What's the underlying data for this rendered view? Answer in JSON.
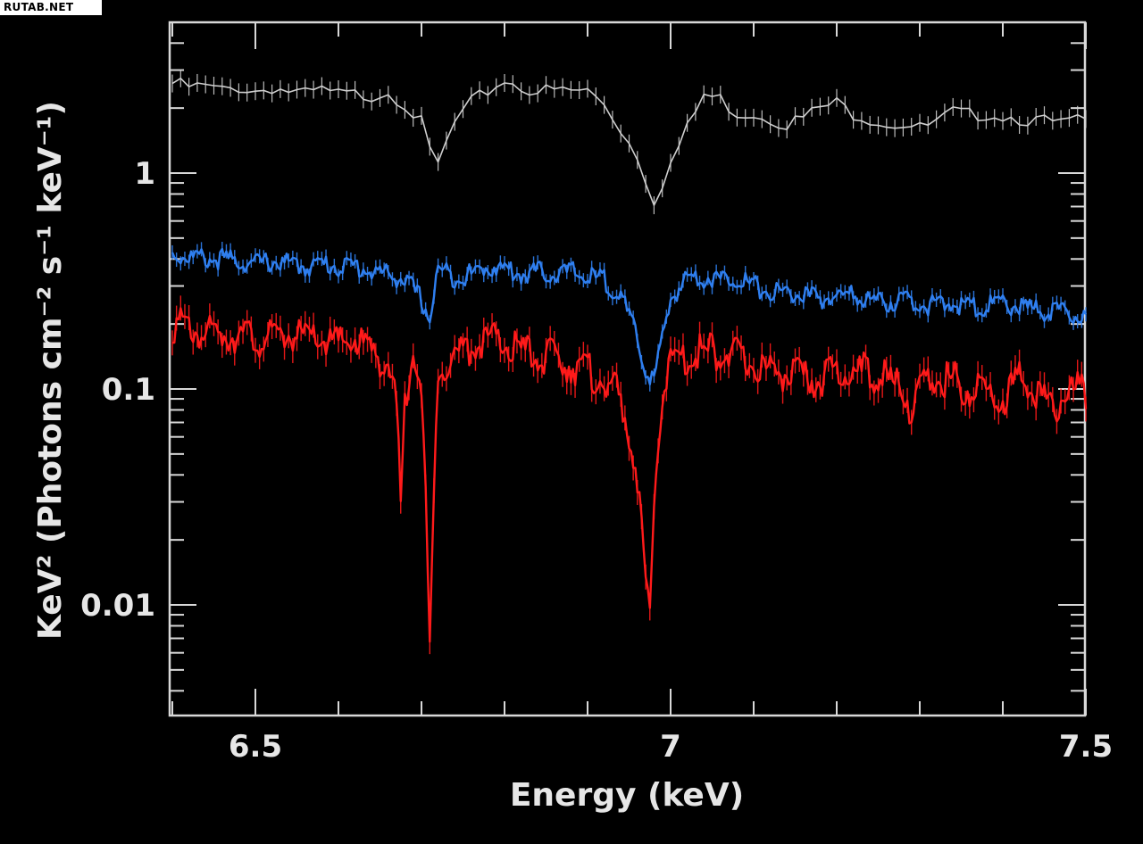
{
  "watermark": "RUTAB.NET",
  "chart_data": {
    "type": "line",
    "xlabel": "Energy (keV)",
    "ylabel": "KeV² (Photons cm⁻² s⁻¹ keV⁻¹)",
    "xlim": [
      6.4,
      7.5
    ],
    "ylim": [
      0.003,
      4.5
    ],
    "y_scale": "log",
    "grid": false,
    "x_ticks": [
      {
        "value": 6.5,
        "label": "6.5"
      },
      {
        "value": 7,
        "label": "7"
      },
      {
        "value": 7.5,
        "label": "7.5"
      }
    ],
    "y_ticks": [
      {
        "value": 1,
        "label": "1"
      },
      {
        "value": 0.1,
        "label": "0.1"
      },
      {
        "value": 0.01,
        "label": "0.01"
      }
    ],
    "series": [
      {
        "color": "#cfcfcf",
        "x": [
          6.4,
          6.42,
          6.44,
          6.46,
          6.48,
          6.5,
          6.52,
          6.54,
          6.56,
          6.58,
          6.6,
          6.62,
          6.64,
          6.66,
          6.68,
          6.7,
          6.71,
          6.72,
          6.74,
          6.76,
          6.78,
          6.8,
          6.82,
          6.84,
          6.86,
          6.88,
          6.9,
          6.92,
          6.94,
          6.96,
          6.98,
          7.0,
          7.02,
          7.04,
          7.06,
          7.08,
          7.1,
          7.12,
          7.14,
          7.16,
          7.18,
          7.2,
          7.22,
          7.24,
          7.26,
          7.28,
          7.3,
          7.32,
          7.34,
          7.36,
          7.38,
          7.4,
          7.42,
          7.44,
          7.46,
          7.48,
          7.5
        ],
        "y": [
          2.6,
          2.5,
          2.5,
          2.4,
          2.5,
          2.4,
          2.5,
          2.4,
          2.3,
          2.4,
          2.3,
          2.3,
          2.3,
          2.4,
          2.1,
          1.7,
          1.25,
          1.1,
          1.7,
          2.1,
          2.4,
          2.7,
          2.5,
          2.4,
          2.4,
          2.4,
          2.4,
          2.1,
          1.6,
          1.2,
          0.75,
          1.1,
          1.6,
          2.3,
          2.2,
          1.9,
          1.9,
          1.8,
          1.7,
          1.8,
          2.0,
          2.1,
          1.9,
          1.8,
          1.7,
          1.7,
          1.6,
          1.7,
          1.9,
          1.85,
          1.9,
          1.85,
          1.8,
          1.75,
          1.7,
          1.7,
          1.75
        ]
      },
      {
        "color": "#2f7ff0",
        "x": [
          6.4,
          6.42,
          6.44,
          6.46,
          6.48,
          6.5,
          6.52,
          6.54,
          6.56,
          6.58,
          6.6,
          6.62,
          6.64,
          6.66,
          6.68,
          6.7,
          6.71,
          6.72,
          6.74,
          6.76,
          6.78,
          6.8,
          6.82,
          6.84,
          6.86,
          6.88,
          6.9,
          6.92,
          6.94,
          6.96,
          6.97,
          6.98,
          7.0,
          7.02,
          7.04,
          7.06,
          7.08,
          7.1,
          7.12,
          7.14,
          7.16,
          7.18,
          7.2,
          7.22,
          7.24,
          7.26,
          7.28,
          7.3,
          7.32,
          7.34,
          7.36,
          7.38,
          7.4,
          7.42,
          7.44,
          7.46,
          7.48,
          7.5
        ],
        "y": [
          0.42,
          0.41,
          0.4,
          0.4,
          0.39,
          0.38,
          0.39,
          0.38,
          0.37,
          0.38,
          0.37,
          0.37,
          0.35,
          0.34,
          0.32,
          0.26,
          0.21,
          0.36,
          0.33,
          0.34,
          0.37,
          0.36,
          0.34,
          0.35,
          0.34,
          0.35,
          0.33,
          0.32,
          0.27,
          0.17,
          0.12,
          0.11,
          0.26,
          0.33,
          0.33,
          0.32,
          0.33,
          0.3,
          0.28,
          0.28,
          0.27,
          0.26,
          0.27,
          0.27,
          0.26,
          0.25,
          0.26,
          0.25,
          0.24,
          0.25,
          0.24,
          0.24,
          0.25,
          0.24,
          0.23,
          0.23,
          0.22,
          0.21
        ]
      },
      {
        "color": "#ff1a1a",
        "x": [
          6.4,
          6.42,
          6.44,
          6.46,
          6.48,
          6.5,
          6.52,
          6.54,
          6.56,
          6.58,
          6.6,
          6.62,
          6.64,
          6.66,
          6.67,
          6.675,
          6.68,
          6.69,
          6.7,
          6.705,
          6.71,
          6.715,
          6.72,
          6.74,
          6.76,
          6.78,
          6.8,
          6.82,
          6.84,
          6.86,
          6.88,
          6.9,
          6.92,
          6.94,
          6.95,
          6.96,
          6.97,
          6.975,
          6.98,
          6.99,
          7.0,
          7.02,
          7.04,
          7.06,
          7.08,
          7.1,
          7.12,
          7.14,
          7.16,
          7.18,
          7.2,
          7.22,
          7.24,
          7.26,
          7.28,
          7.29,
          7.3,
          7.32,
          7.34,
          7.36,
          7.38,
          7.4,
          7.42,
          7.44,
          7.46,
          7.48,
          7.5
        ],
        "y": [
          0.2,
          0.19,
          0.18,
          0.18,
          0.18,
          0.17,
          0.17,
          0.18,
          0.17,
          0.17,
          0.16,
          0.17,
          0.15,
          0.13,
          0.08,
          0.03,
          0.08,
          0.17,
          0.1,
          0.03,
          0.006,
          0.03,
          0.13,
          0.14,
          0.16,
          0.17,
          0.16,
          0.15,
          0.14,
          0.14,
          0.13,
          0.12,
          0.11,
          0.09,
          0.06,
          0.04,
          0.012,
          0.008,
          0.03,
          0.1,
          0.13,
          0.14,
          0.15,
          0.15,
          0.14,
          0.13,
          0.12,
          0.12,
          0.11,
          0.11,
          0.12,
          0.12,
          0.12,
          0.11,
          0.1,
          0.08,
          0.1,
          0.11,
          0.11,
          0.1,
          0.1,
          0.09,
          0.11,
          0.1,
          0.08,
          0.1,
          0.095
        ]
      }
    ]
  }
}
